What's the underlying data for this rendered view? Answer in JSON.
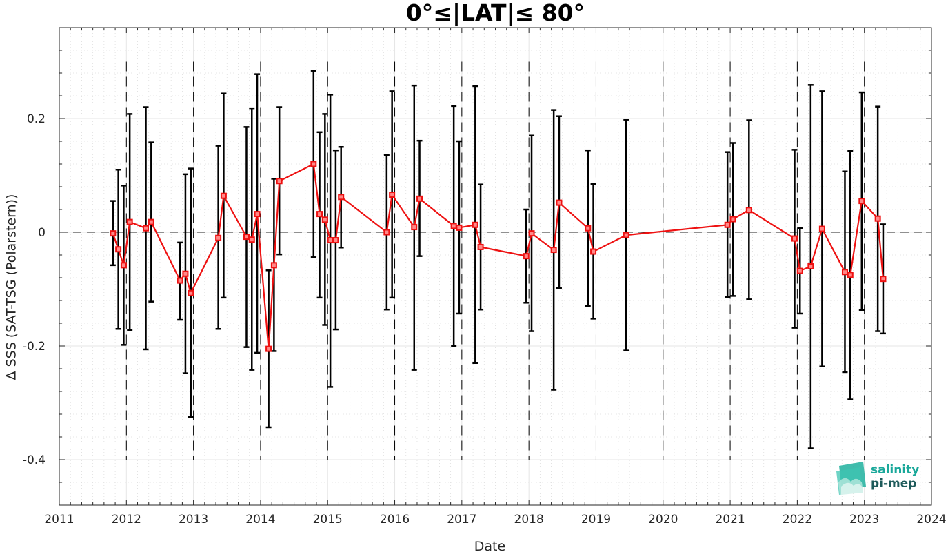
{
  "chart_data": {
    "type": "line",
    "title": "0°≤|LAT|≤ 80°",
    "xlabel": "Date",
    "ylabel": "Δ SSS (SAT-TSG (Polarstern))",
    "xlim": [
      2011,
      2024
    ],
    "ylim": [
      -0.48,
      0.36
    ],
    "x_ticks": [
      "2011",
      "2012",
      "2013",
      "2014",
      "2015",
      "2016",
      "2017",
      "2018",
      "2019",
      "2020",
      "2021",
      "2022",
      "2023",
      "2024"
    ],
    "y_ticks": [
      "-0.4",
      "-0.2",
      "0",
      "0.2"
    ],
    "y_tick_values": [
      -0.4,
      -0.2,
      0,
      0.2
    ],
    "year_dividers": [
      2012,
      2013,
      2014,
      2015,
      2016,
      2017,
      2018,
      2019,
      2020,
      2021,
      2022,
      2023
    ],
    "zero_line": 0,
    "grid": true,
    "minor_grid": true,
    "series": [
      {
        "color": "#ee1111",
        "errorbar_color": "#000000",
        "points": [
          {
            "x": 2011.8,
            "y": -0.002,
            "lo": -0.058,
            "hi": 0.055
          },
          {
            "x": 2011.88,
            "y": -0.03,
            "lo": -0.17,
            "hi": 0.11
          },
          {
            "x": 2011.96,
            "y": -0.058,
            "lo": -0.198,
            "hi": 0.082
          },
          {
            "x": 2012.05,
            "y": 0.018,
            "lo": -0.172,
            "hi": 0.208
          },
          {
            "x": 2012.29,
            "y": 0.007,
            "lo": -0.206,
            "hi": 0.22
          },
          {
            "x": 2012.37,
            "y": 0.018,
            "lo": -0.122,
            "hi": 0.158
          },
          {
            "x": 2012.8,
            "y": -0.085,
            "lo": -0.154,
            "hi": -0.018
          },
          {
            "x": 2012.88,
            "y": -0.073,
            "lo": -0.248,
            "hi": 0.102
          },
          {
            "x": 2012.96,
            "y": -0.107,
            "lo": -0.325,
            "hi": 0.112
          },
          {
            "x": 2013.37,
            "y": -0.01,
            "lo": -0.17,
            "hi": 0.152
          },
          {
            "x": 2013.45,
            "y": 0.064,
            "lo": -0.115,
            "hi": 0.244
          },
          {
            "x": 2013.79,
            "y": -0.008,
            "lo": -0.202,
            "hi": 0.185
          },
          {
            "x": 2013.87,
            "y": -0.013,
            "lo": -0.242,
            "hi": 0.218
          },
          {
            "x": 2013.95,
            "y": 0.032,
            "lo": -0.212,
            "hi": 0.278
          },
          {
            "x": 2014.12,
            "y": -0.205,
            "lo": -0.343,
            "hi": -0.067
          },
          {
            "x": 2014.2,
            "y": -0.058,
            "lo": -0.209,
            "hi": 0.094
          },
          {
            "x": 2014.28,
            "y": 0.09,
            "lo": -0.039,
            "hi": 0.22
          },
          {
            "x": 2014.79,
            "y": 0.12,
            "lo": -0.044,
            "hi": 0.284
          },
          {
            "x": 2014.88,
            "y": 0.032,
            "lo": -0.115,
            "hi": 0.176
          },
          {
            "x": 2014.96,
            "y": 0.022,
            "lo": -0.163,
            "hi": 0.208
          },
          {
            "x": 2015.04,
            "y": -0.014,
            "lo": -0.272,
            "hi": 0.242
          },
          {
            "x": 2015.12,
            "y": -0.014,
            "lo": -0.171,
            "hi": 0.144
          },
          {
            "x": 2015.2,
            "y": 0.062,
            "lo": -0.027,
            "hi": 0.15
          },
          {
            "x": 2015.88,
            "y": 0.0,
            "lo": -0.136,
            "hi": 0.136
          },
          {
            "x": 2015.96,
            "y": 0.066,
            "lo": -0.115,
            "hi": 0.248
          },
          {
            "x": 2016.29,
            "y": 0.009,
            "lo": -0.242,
            "hi": 0.258
          },
          {
            "x": 2016.37,
            "y": 0.059,
            "lo": -0.042,
            "hi": 0.161
          },
          {
            "x": 2016.88,
            "y": 0.011,
            "lo": -0.2,
            "hi": 0.222
          },
          {
            "x": 2016.96,
            "y": 0.008,
            "lo": -0.143,
            "hi": 0.16
          },
          {
            "x": 2017.2,
            "y": 0.013,
            "lo": -0.23,
            "hi": 0.257
          },
          {
            "x": 2017.28,
            "y": -0.026,
            "lo": -0.136,
            "hi": 0.084
          },
          {
            "x": 2017.96,
            "y": -0.042,
            "lo": -0.124,
            "hi": 0.04
          },
          {
            "x": 2018.04,
            "y": -0.002,
            "lo": -0.174,
            "hi": 0.17
          },
          {
            "x": 2018.37,
            "y": -0.031,
            "lo": -0.277,
            "hi": 0.215
          },
          {
            "x": 2018.45,
            "y": 0.052,
            "lo": -0.098,
            "hi": 0.204
          },
          {
            "x": 2018.88,
            "y": 0.007,
            "lo": -0.13,
            "hi": 0.144
          },
          {
            "x": 2018.96,
            "y": -0.034,
            "lo": -0.152,
            "hi": 0.085
          },
          {
            "x": 2019.45,
            "y": -0.005,
            "lo": -0.208,
            "hi": 0.198
          },
          {
            "x": 2020.96,
            "y": 0.013,
            "lo": -0.114,
            "hi": 0.141
          },
          {
            "x": 2021.04,
            "y": 0.023,
            "lo": -0.112,
            "hi": 0.157
          },
          {
            "x": 2021.28,
            "y": 0.039,
            "lo": -0.118,
            "hi": 0.197
          },
          {
            "x": 2021.96,
            "y": -0.011,
            "lo": -0.168,
            "hi": 0.145
          },
          {
            "x": 2022.04,
            "y": -0.068,
            "lo": -0.143,
            "hi": 0.007
          },
          {
            "x": 2022.2,
            "y": -0.06,
            "lo": -0.38,
            "hi": 0.259
          },
          {
            "x": 2022.37,
            "y": 0.006,
            "lo": -0.236,
            "hi": 0.248
          },
          {
            "x": 2022.71,
            "y": -0.07,
            "lo": -0.246,
            "hi": 0.107
          },
          {
            "x": 2022.79,
            "y": -0.075,
            "lo": -0.294,
            "hi": 0.143
          },
          {
            "x": 2022.96,
            "y": 0.055,
            "lo": -0.137,
            "hi": 0.246
          },
          {
            "x": 2023.2,
            "y": 0.024,
            "lo": -0.174,
            "hi": 0.221
          },
          {
            "x": 2023.28,
            "y": -0.082,
            "lo": -0.178,
            "hi": 0.014
          }
        ]
      }
    ]
  },
  "logo": {
    "line1": "salinity",
    "line2": "pi-mep",
    "line1_color": "#1aa89a",
    "line2_color": "#1d5a5a"
  }
}
